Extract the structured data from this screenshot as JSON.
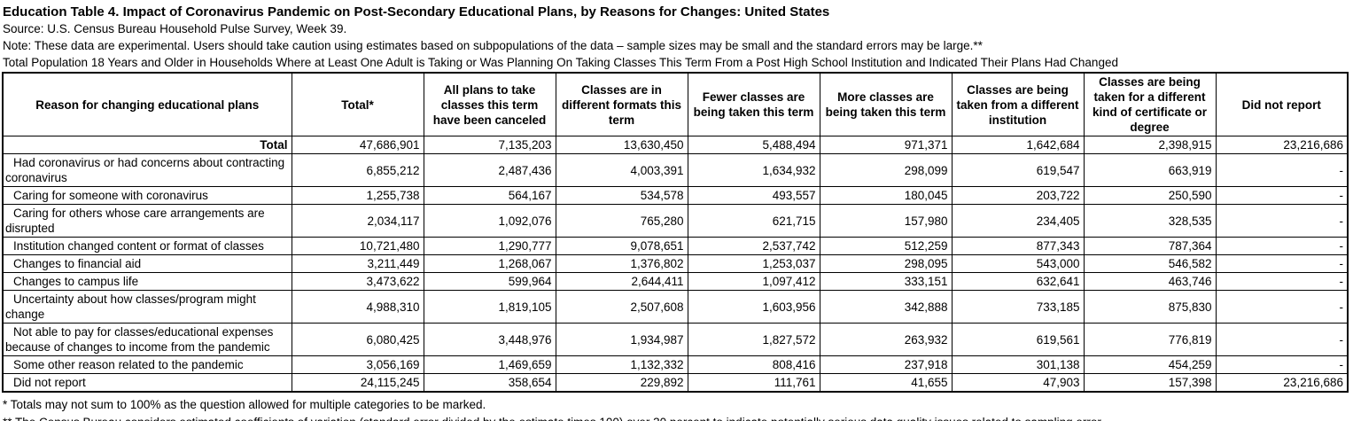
{
  "header": {
    "title": "Education Table 4. Impact of Coronavirus Pandemic on Post-Secondary Educational Plans, by Reasons for Changes: United States",
    "source": "Source: U.S. Census Bureau Household Pulse Survey, Week 39.",
    "note": "Note: These data are experimental. Users should take caution using estimates based on subpopulations of the data – sample sizes may be small and the standard errors may be large.**",
    "universe": "Total Population 18 Years and Older in Households Where at Least One Adult is Taking or Was Planning On Taking Classes This Term From a Post High School Institution and Indicated Their Plans Had Changed"
  },
  "table": {
    "columns": [
      "Reason for changing educational plans",
      "Total*",
      "All plans to take classes this term have been canceled",
      "Classes are in different formats this term",
      "Fewer classes are being taken this term",
      "More classes are being taken this term",
      "Classes are being taken from a different institution",
      "Classes are being taken for a different kind of certificate or degree",
      "Did not report"
    ],
    "rows": [
      {
        "label": "Total",
        "is_total": true,
        "values": [
          "47,686,901",
          "7,135,203",
          "13,630,450",
          "5,488,494",
          "971,371",
          "1,642,684",
          "2,398,915",
          "23,216,686"
        ]
      },
      {
        "label": "Had coronavirus or had concerns about contracting coronavirus",
        "is_total": false,
        "values": [
          "6,855,212",
          "2,487,436",
          "4,003,391",
          "1,634,932",
          "298,099",
          "619,547",
          "663,919",
          "-"
        ]
      },
      {
        "label": "Caring for someone with coronavirus",
        "is_total": false,
        "values": [
          "1,255,738",
          "564,167",
          "534,578",
          "493,557",
          "180,045",
          "203,722",
          "250,590",
          "-"
        ]
      },
      {
        "label": "Caring for others whose care arrangements are disrupted",
        "is_total": false,
        "values": [
          "2,034,117",
          "1,092,076",
          "765,280",
          "621,715",
          "157,980",
          "234,405",
          "328,535",
          "-"
        ]
      },
      {
        "label": "Institution changed content or format of classes",
        "is_total": false,
        "values": [
          "10,721,480",
          "1,290,777",
          "9,078,651",
          "2,537,742",
          "512,259",
          "877,343",
          "787,364",
          "-"
        ]
      },
      {
        "label": "Changes to financial aid",
        "is_total": false,
        "values": [
          "3,211,449",
          "1,268,067",
          "1,376,802",
          "1,253,037",
          "298,095",
          "543,000",
          "546,582",
          "-"
        ]
      },
      {
        "label": "Changes to campus life",
        "is_total": false,
        "values": [
          "3,473,622",
          "599,964",
          "2,644,411",
          "1,097,412",
          "333,151",
          "632,641",
          "463,746",
          "-"
        ]
      },
      {
        "label": "Uncertainty about how classes/program might change",
        "is_total": false,
        "values": [
          "4,988,310",
          "1,819,105",
          "2,507,608",
          "1,603,956",
          "342,888",
          "733,185",
          "875,830",
          "-"
        ]
      },
      {
        "label": "Not able to pay for classes/educational expenses because of changes to income from the pandemic",
        "is_total": false,
        "values": [
          "6,080,425",
          "3,448,976",
          "1,934,987",
          "1,827,572",
          "263,932",
          "619,561",
          "776,819",
          "-"
        ]
      },
      {
        "label": "Some other reason related to the pandemic",
        "is_total": false,
        "values": [
          "3,056,169",
          "1,469,659",
          "1,132,332",
          "808,416",
          "237,918",
          "301,138",
          "454,259",
          "-"
        ]
      },
      {
        "label": "Did not report",
        "is_total": false,
        "values": [
          "24,115,245",
          "358,654",
          "229,892",
          "111,761",
          "41,655",
          "47,903",
          "157,398",
          "23,216,686"
        ]
      }
    ]
  },
  "footnotes": [
    "* Totals may not sum to 100% as the question allowed for multiple categories to be marked.",
    "** The Census Bureau considers estimated coefficients of variation (standard error divided by the estimate times 100) over 30 percent to indicate potentially serious data quality issues related to sampling error."
  ]
}
